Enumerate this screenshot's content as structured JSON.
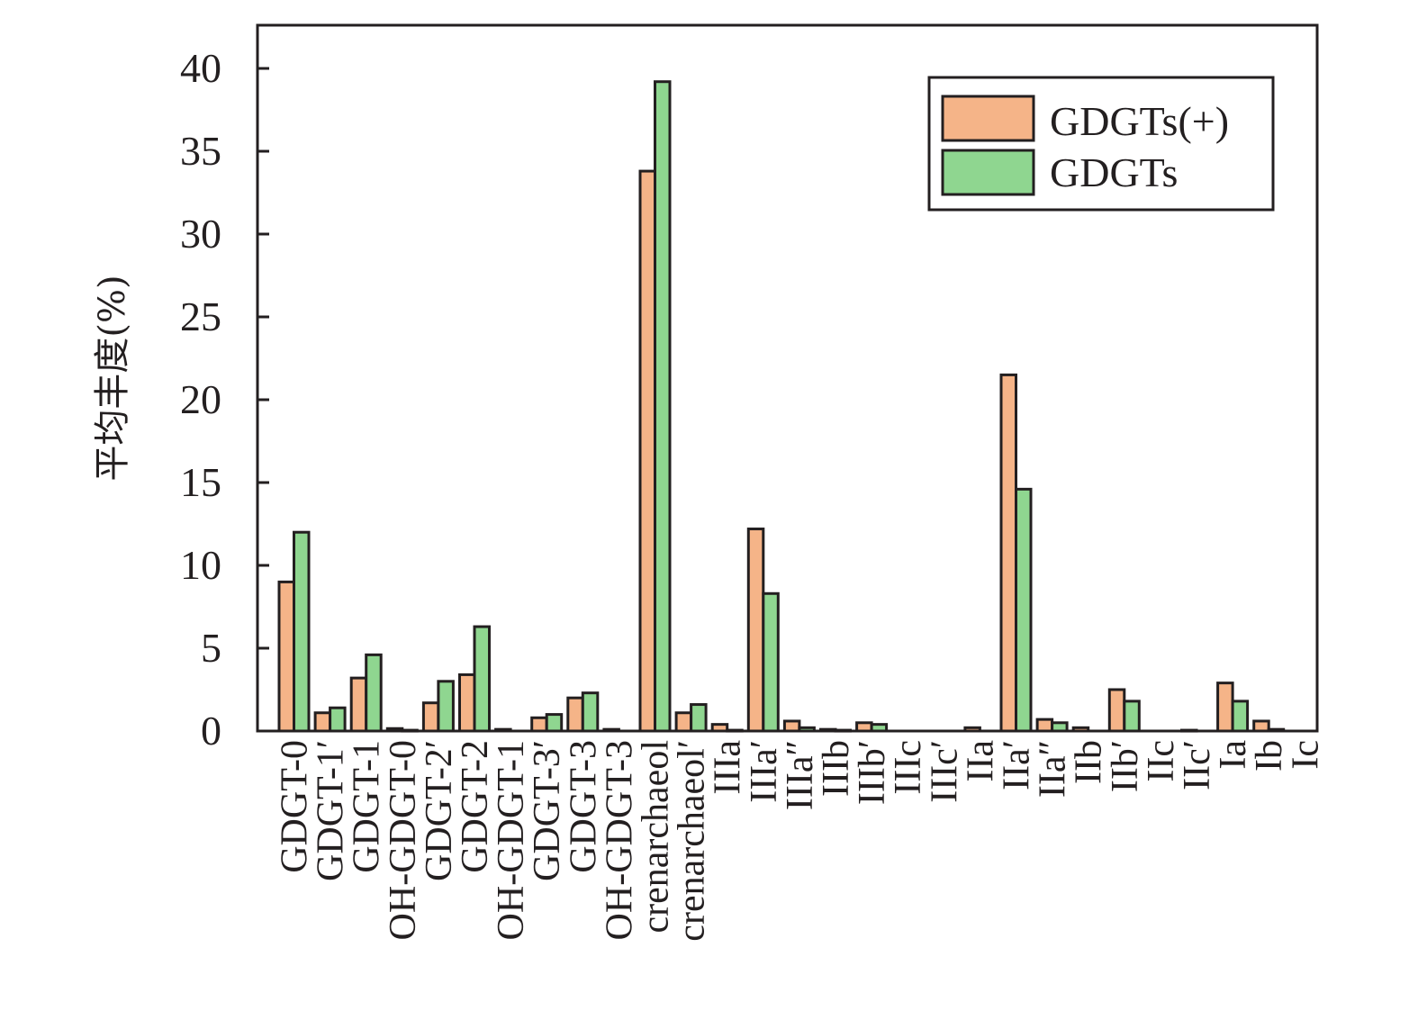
{
  "chart_data": {
    "type": "bar",
    "title": "",
    "xlabel": "",
    "ylabel": "平均丰度(%)",
    "ylim": [
      0,
      42.5
    ],
    "yticks": [
      0,
      5,
      10,
      15,
      20,
      25,
      30,
      35,
      40
    ],
    "ytick_labels": [
      "0",
      "5",
      "10",
      "15",
      "20",
      "25",
      "30",
      "35",
      "40"
    ],
    "grid": false,
    "legend_position": "top-right",
    "categories": [
      "GDGT-0",
      "GDGT-1′",
      "GDGT-1",
      "OH-GDGT-0",
      "GDGT-2′",
      "GDGT-2",
      "OH-GDGT-1",
      "GDGT-3′",
      "GDGT-3",
      "OH-GDGT-3",
      "crenarchaeol",
      "crenarchaeol′",
      "IIIa",
      "IIIa′",
      "IIIa″",
      "IIIb",
      "IIIb′",
      "IIIc",
      "IIIc′",
      "IIa",
      "IIa′",
      "IIa″",
      "IIb",
      "IIb′",
      "IIc",
      "IIc′",
      "Ia",
      "Ib",
      "Ic"
    ],
    "series": [
      {
        "name": "GDGTs(+)",
        "color": "#f5b488",
        "values": [
          9.0,
          1.1,
          3.2,
          0.15,
          1.7,
          3.4,
          0.1,
          0.8,
          2.0,
          0.1,
          33.8,
          1.1,
          0.4,
          12.2,
          0.6,
          0.1,
          0.5,
          0.0,
          0.0,
          0.2,
          21.5,
          0.7,
          0.2,
          2.5,
          0.0,
          0.05,
          2.9,
          0.6,
          0.0
        ]
      },
      {
        "name": "GDGTs",
        "color": "#8fd690",
        "values": [
          12.0,
          1.4,
          4.6,
          0.05,
          3.0,
          6.3,
          0.0,
          1.0,
          2.3,
          0.0,
          39.2,
          1.6,
          0.05,
          8.3,
          0.2,
          0.05,
          0.4,
          0.0,
          0.0,
          0.0,
          14.6,
          0.5,
          0.0,
          1.8,
          0.0,
          0.0,
          1.8,
          0.1,
          0.0
        ]
      }
    ]
  }
}
